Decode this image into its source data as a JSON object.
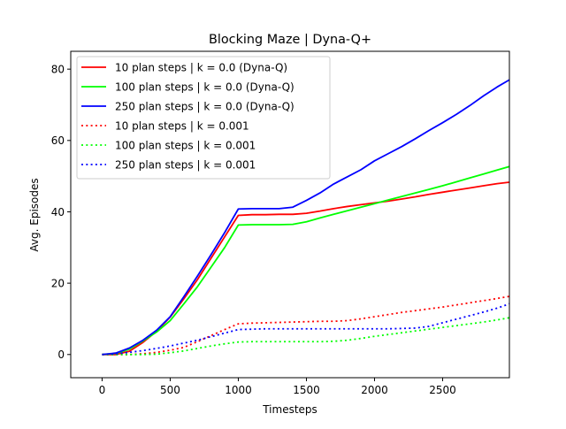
{
  "chart_data": {
    "type": "line",
    "title": "Blocking Maze | Dyna-Q+",
    "xlabel": "Timesteps",
    "ylabel": "Avg. Episodes",
    "xlim": [
      -230,
      2990
    ],
    "ylim": [
      -6.5,
      85
    ],
    "xticks": [
      0,
      500,
      1000,
      1500,
      2000,
      2500
    ],
    "yticks": [
      0,
      20,
      40,
      60,
      80
    ],
    "grid": false,
    "legend_position": "top-left",
    "series": [
      {
        "name": "10 plan steps | k = 0.0 (Dyna-Q)",
        "color": "#ff0000",
        "dash": "solid",
        "points": [
          [
            0,
            0
          ],
          [
            100,
            0
          ],
          [
            200,
            0.9
          ],
          [
            300,
            3.4
          ],
          [
            400,
            6.5
          ],
          [
            500,
            10.5
          ],
          [
            600,
            15.6
          ],
          [
            700,
            21
          ],
          [
            800,
            27
          ],
          [
            900,
            33
          ],
          [
            1000,
            39
          ],
          [
            1100,
            39.2
          ],
          [
            1200,
            39.2
          ],
          [
            1300,
            39.3
          ],
          [
            1400,
            39.3
          ],
          [
            1500,
            39.6
          ],
          [
            1600,
            40.2
          ],
          [
            1700,
            40.9
          ],
          [
            1800,
            41.5
          ],
          [
            1900,
            42
          ],
          [
            2000,
            42.5
          ],
          [
            2100,
            43
          ],
          [
            2200,
            43.6
          ],
          [
            2300,
            44.2
          ],
          [
            2400,
            44.9
          ],
          [
            2500,
            45.5
          ],
          [
            2600,
            46.1
          ],
          [
            2700,
            46.7
          ],
          [
            2800,
            47.3
          ],
          [
            2900,
            47.9
          ],
          [
            2990,
            48.3
          ]
        ]
      },
      {
        "name": "100 plan steps | k = 0.0 (Dyna-Q)",
        "color": "#00ff00",
        "dash": "solid",
        "points": [
          [
            0,
            0
          ],
          [
            100,
            0.3
          ],
          [
            200,
            1.5
          ],
          [
            300,
            3.8
          ],
          [
            400,
            6.3
          ],
          [
            500,
            9.5
          ],
          [
            600,
            14.2
          ],
          [
            700,
            19
          ],
          [
            800,
            24.5
          ],
          [
            900,
            30
          ],
          [
            1000,
            36.3
          ],
          [
            1100,
            36.4
          ],
          [
            1200,
            36.4
          ],
          [
            1300,
            36.4
          ],
          [
            1400,
            36.5
          ],
          [
            1500,
            37.2
          ],
          [
            1600,
            38.3
          ],
          [
            1700,
            39.3
          ],
          [
            1800,
            40.3
          ],
          [
            1900,
            41.3
          ],
          [
            2000,
            42.3
          ],
          [
            2100,
            43.3
          ],
          [
            2200,
            44.3
          ],
          [
            2300,
            45.3
          ],
          [
            2400,
            46.3
          ],
          [
            2500,
            47.3
          ],
          [
            2600,
            48.4
          ],
          [
            2700,
            49.5
          ],
          [
            2800,
            50.6
          ],
          [
            2900,
            51.7
          ],
          [
            2990,
            52.7
          ]
        ]
      },
      {
        "name": "250 plan steps | k = 0.0 (Dyna-Q)",
        "color": "#0000ff",
        "dash": "solid",
        "points": [
          [
            0,
            0
          ],
          [
            100,
            0.4
          ],
          [
            200,
            1.8
          ],
          [
            300,
            4
          ],
          [
            400,
            6.8
          ],
          [
            500,
            10.6
          ],
          [
            600,
            16.2
          ],
          [
            700,
            22
          ],
          [
            800,
            28
          ],
          [
            900,
            34.2
          ],
          [
            1000,
            40.8
          ],
          [
            1100,
            40.9
          ],
          [
            1200,
            40.9
          ],
          [
            1300,
            40.9
          ],
          [
            1400,
            41.3
          ],
          [
            1500,
            43.2
          ],
          [
            1600,
            45.3
          ],
          [
            1700,
            47.8
          ],
          [
            1800,
            49.8
          ],
          [
            1900,
            51.8
          ],
          [
            2000,
            54.3
          ],
          [
            2100,
            56.3
          ],
          [
            2200,
            58.3
          ],
          [
            2300,
            60.5
          ],
          [
            2400,
            62.8
          ],
          [
            2500,
            65
          ],
          [
            2600,
            67.3
          ],
          [
            2700,
            69.8
          ],
          [
            2800,
            72.5
          ],
          [
            2900,
            75
          ],
          [
            2990,
            77
          ]
        ]
      },
      {
        "name": "10 plan steps | k = 0.001",
        "color": "#ff0000",
        "dash": "dotted",
        "points": [
          [
            0,
            0
          ],
          [
            100,
            0
          ],
          [
            200,
            0
          ],
          [
            300,
            0.2
          ],
          [
            400,
            0.6
          ],
          [
            500,
            1.2
          ],
          [
            600,
            2
          ],
          [
            700,
            3.6
          ],
          [
            800,
            5.3
          ],
          [
            900,
            7
          ],
          [
            1000,
            8.6
          ],
          [
            1100,
            8.8
          ],
          [
            1200,
            8.9
          ],
          [
            1300,
            9
          ],
          [
            1400,
            9.1
          ],
          [
            1500,
            9.2
          ],
          [
            1600,
            9.3
          ],
          [
            1700,
            9.3
          ],
          [
            1800,
            9.5
          ],
          [
            1900,
            10
          ],
          [
            2000,
            10.6
          ],
          [
            2100,
            11.2
          ],
          [
            2200,
            11.8
          ],
          [
            2300,
            12.3
          ],
          [
            2400,
            12.8
          ],
          [
            2500,
            13.3
          ],
          [
            2600,
            13.9
          ],
          [
            2700,
            14.5
          ],
          [
            2800,
            15.1
          ],
          [
            2900,
            15.7
          ],
          [
            2990,
            16.3
          ]
        ]
      },
      {
        "name": "100 plan steps | k = 0.001",
        "color": "#00ff00",
        "dash": "dotted",
        "points": [
          [
            0,
            0
          ],
          [
            100,
            0
          ],
          [
            200,
            0
          ],
          [
            300,
            0
          ],
          [
            400,
            0.1
          ],
          [
            500,
            0.5
          ],
          [
            600,
            1
          ],
          [
            700,
            1.7
          ],
          [
            800,
            2.4
          ],
          [
            900,
            3
          ],
          [
            1000,
            3.5
          ],
          [
            1100,
            3.6
          ],
          [
            1200,
            3.6
          ],
          [
            1300,
            3.6
          ],
          [
            1400,
            3.6
          ],
          [
            1500,
            3.6
          ],
          [
            1600,
            3.6
          ],
          [
            1700,
            3.7
          ],
          [
            1800,
            4
          ],
          [
            1900,
            4.5
          ],
          [
            2000,
            5.1
          ],
          [
            2100,
            5.6
          ],
          [
            2200,
            6.1
          ],
          [
            2300,
            6.6
          ],
          [
            2400,
            7.1
          ],
          [
            2500,
            7.6
          ],
          [
            2600,
            8.1
          ],
          [
            2700,
            8.6
          ],
          [
            2800,
            9.1
          ],
          [
            2900,
            9.7
          ],
          [
            2990,
            10.3
          ]
        ]
      },
      {
        "name": "250 plan steps | k = 0.001",
        "color": "#0000ff",
        "dash": "dotted",
        "points": [
          [
            0,
            0
          ],
          [
            100,
            0.2
          ],
          [
            200,
            0.6
          ],
          [
            300,
            1.1
          ],
          [
            400,
            1.7
          ],
          [
            500,
            2.4
          ],
          [
            600,
            3.2
          ],
          [
            700,
            4
          ],
          [
            800,
            5
          ],
          [
            900,
            6
          ],
          [
            1000,
            7
          ],
          [
            1100,
            7.1
          ],
          [
            1200,
            7.2
          ],
          [
            1300,
            7.2
          ],
          [
            1400,
            7.2
          ],
          [
            1500,
            7.2
          ],
          [
            1600,
            7.2
          ],
          [
            1700,
            7.2
          ],
          [
            1800,
            7.2
          ],
          [
            1900,
            7.2
          ],
          [
            2000,
            7.2
          ],
          [
            2100,
            7.2
          ],
          [
            2200,
            7.3
          ],
          [
            2300,
            7.4
          ],
          [
            2400,
            7.9
          ],
          [
            2500,
            8.9
          ],
          [
            2600,
            9.9
          ],
          [
            2700,
            10.9
          ],
          [
            2800,
            11.9
          ],
          [
            2900,
            13
          ],
          [
            2990,
            14.2
          ]
        ]
      }
    ]
  }
}
